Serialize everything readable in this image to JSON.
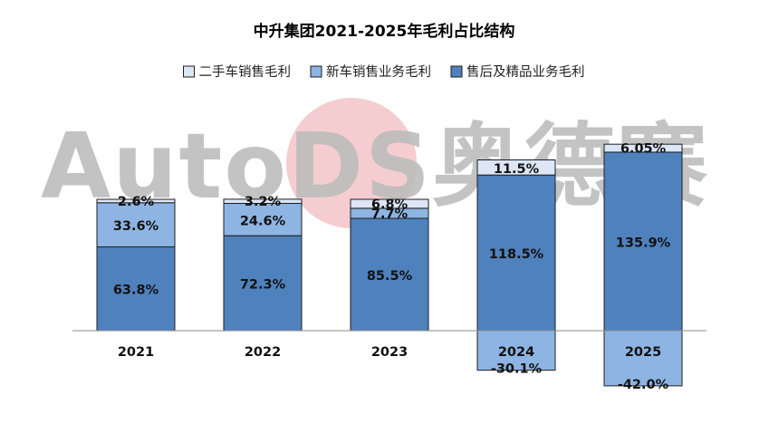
{
  "chart_data": {
    "type": "bar",
    "stacked": true,
    "title": "中升集团2021-2025年毛利占比结构",
    "categories": [
      "2021",
      "2022",
      "2023",
      "2024",
      "2025"
    ],
    "series": [
      {
        "name": "二手车销售毛利",
        "color": "#dce6f5",
        "values": [
          2.6,
          3.2,
          6.8,
          11.5,
          6.05
        ],
        "labels": [
          "2.6%",
          "3.2%",
          "6.8%",
          "11.5%",
          "6.05%"
        ]
      },
      {
        "name": "新车销售业务毛利",
        "color": "#8db4e2",
        "values": [
          33.6,
          24.6,
          7.7,
          -30.1,
          -42.0
        ],
        "labels": [
          "33.6%",
          "24.6%",
          "7.7%",
          "-30.1%",
          "-42.0%"
        ]
      },
      {
        "name": "售后及精品业务毛利",
        "color": "#4f81bd",
        "values": [
          63.8,
          72.3,
          85.5,
          118.5,
          135.9
        ],
        "labels": [
          "63.8%",
          "72.3%",
          "85.5%",
          "118.5%",
          "135.9%"
        ]
      }
    ],
    "legend_order": [
      0,
      1,
      2
    ],
    "legend_position": "top",
    "grid": false,
    "watermark": "AutoDS奥德赛",
    "ylim": [
      -50,
      210
    ]
  }
}
